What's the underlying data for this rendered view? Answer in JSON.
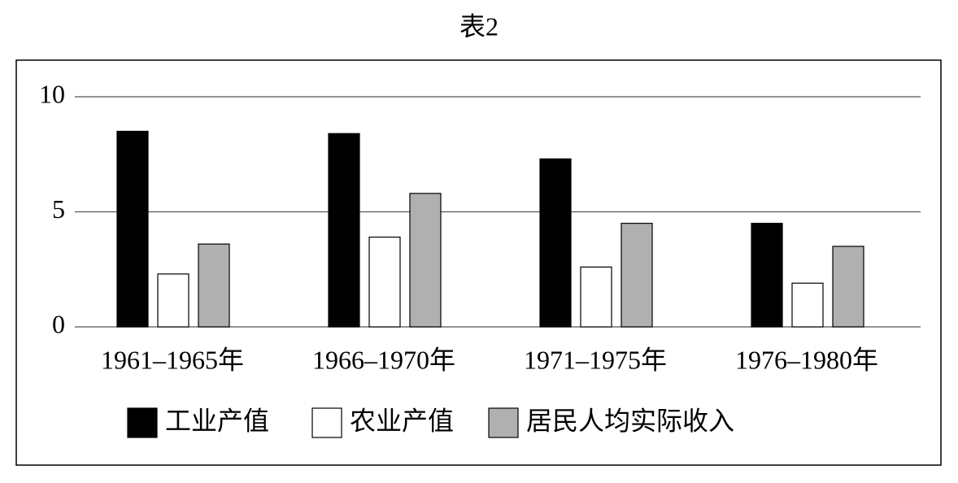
{
  "chart_data": {
    "type": "bar",
    "title": "表2",
    "categories": [
      "1961–1965年",
      "1966–1970年",
      "1971–1975年",
      "1976–1980年"
    ],
    "series": [
      {
        "name": "工业产值",
        "color": "#000000",
        "values": [
          8.5,
          8.4,
          7.3,
          4.5
        ]
      },
      {
        "name": "农业产值",
        "color": "#ffffff",
        "values": [
          2.3,
          3.9,
          2.6,
          1.9
        ]
      },
      {
        "name": "居民人均实际收入",
        "color": "#b0b0b0",
        "values": [
          3.6,
          5.8,
          4.5,
          3.5
        ]
      }
    ],
    "ylim": [
      0,
      10
    ],
    "yticks": [
      0,
      5,
      10
    ],
    "grid": true
  }
}
